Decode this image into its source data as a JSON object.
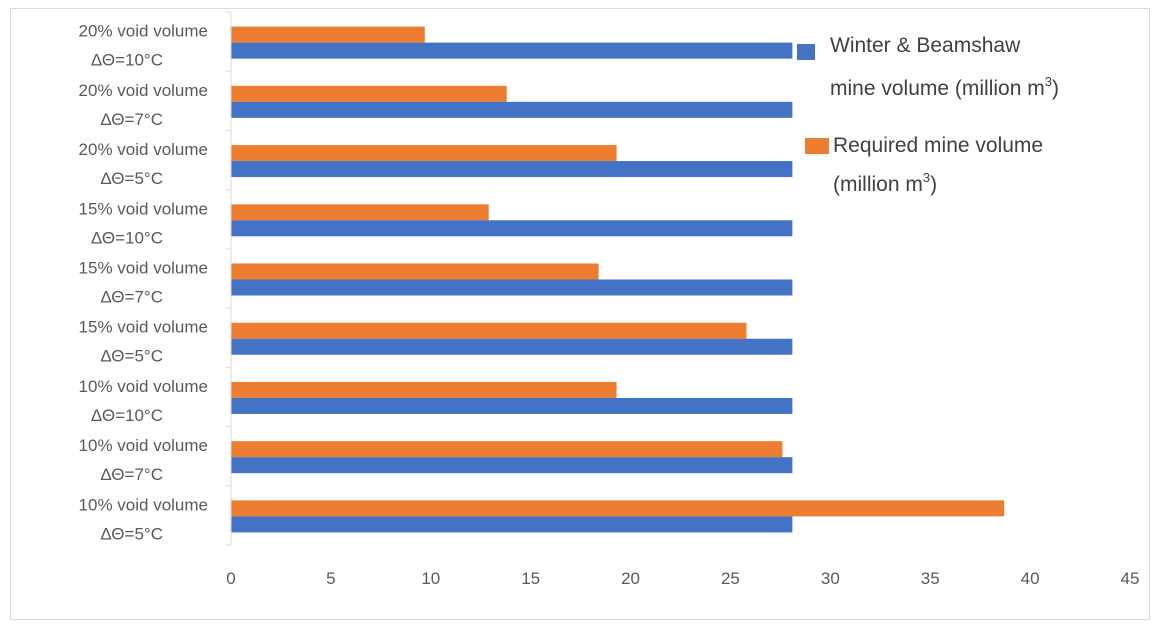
{
  "chart_data": {
    "type": "bar",
    "orientation": "horizontal",
    "title": "",
    "xlabel": "",
    "ylabel": "",
    "xlim": [
      0,
      45
    ],
    "x_ticks": [
      "0",
      "5",
      "10",
      "15",
      "20",
      "25",
      "30",
      "35",
      "40",
      "45"
    ],
    "grid": false,
    "legend_position": "top-right",
    "categories": [
      {
        "line1": "20% void volume",
        "line2": "ΔΘ=10°C"
      },
      {
        "line1": "20% void volume",
        "line2": "ΔΘ=7°C"
      },
      {
        "line1": "20% void volume",
        "line2": "ΔΘ=5°C"
      },
      {
        "line1": "15% void volume",
        "line2": "ΔΘ=10°C"
      },
      {
        "line1": "15% void volume",
        "line2": "ΔΘ=7°C"
      },
      {
        "line1": "15% void volume",
        "line2": "ΔΘ=5°C"
      },
      {
        "line1": "10% void volume",
        "line2": "ΔΘ=10°C"
      },
      {
        "line1": "10% void volume",
        "line2": "ΔΘ=7°C"
      },
      {
        "line1": "10% void volume",
        "line2": "ΔΘ=5°C"
      }
    ],
    "series": [
      {
        "name_line1": "Winter & Beamshaw",
        "name_line2": "mine volume (million m",
        "name_sup": "3",
        "name_tail": ")",
        "color": "#4472C4",
        "values": [
          28.1,
          28.1,
          28.1,
          28.1,
          28.1,
          28.1,
          28.1,
          28.1,
          28.1
        ]
      },
      {
        "name_line1": "Required mine volume",
        "name_line2": "(million m",
        "name_sup": "3",
        "name_tail": ")",
        "color": "#ED7D31",
        "values": [
          9.7,
          13.8,
          19.3,
          12.9,
          18.4,
          25.8,
          19.3,
          27.6,
          38.7
        ]
      }
    ]
  }
}
